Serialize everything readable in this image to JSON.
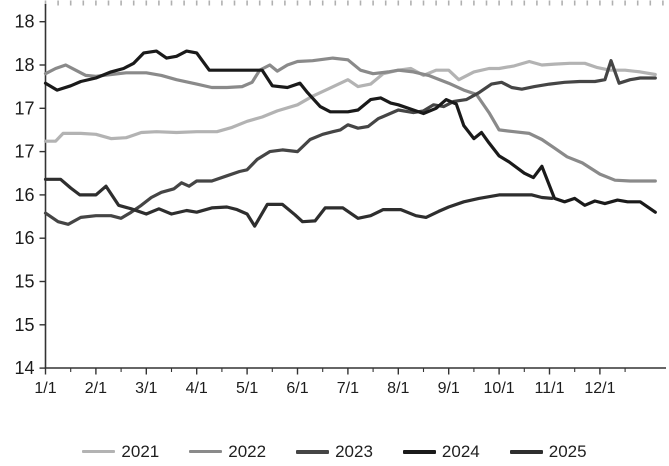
{
  "chart_data": {
    "type": "line",
    "title": "",
    "xlabel": "",
    "ylabel": "",
    "x_axis": {
      "month_labels": [
        "1/1",
        "2/1",
        "3/1",
        "4/1",
        "5/1",
        "6/1",
        "7/1",
        "8/1",
        "9/1",
        "10/1",
        "11/1",
        "12/1"
      ],
      "range_months": [
        0,
        12.3
      ],
      "minor_ticks": "half-month",
      "top_edge_ticks": "weekly"
    },
    "y_axis": {
      "range": [
        14,
        18
      ],
      "tick_values": [
        18,
        17.5,
        17,
        16.5,
        16,
        15.5,
        15,
        14.5,
        14
      ],
      "tick_labels": [
        "18",
        "18",
        "17",
        "17",
        "16",
        "16",
        "15",
        "15",
        "14"
      ]
    },
    "grid": "off",
    "legend_position": "bottom",
    "series": [
      {
        "name": "2021",
        "color": "#b3b3b3",
        "points": [
          [
            0,
            16.62
          ],
          [
            0.2,
            16.62
          ],
          [
            0.35,
            16.71
          ],
          [
            0.7,
            16.71
          ],
          [
            1,
            16.7
          ],
          [
            1.3,
            16.65
          ],
          [
            1.6,
            16.66
          ],
          [
            1.9,
            16.72
          ],
          [
            2.2,
            16.73
          ],
          [
            2.6,
            16.72
          ],
          [
            3,
            16.73
          ],
          [
            3.4,
            16.73
          ],
          [
            3.7,
            16.78
          ],
          [
            4,
            16.85
          ],
          [
            4.3,
            16.9
          ],
          [
            4.6,
            16.97
          ],
          [
            5,
            17.04
          ],
          [
            5.3,
            17.14
          ],
          [
            5.6,
            17.22
          ],
          [
            6,
            17.33
          ],
          [
            6.2,
            17.25
          ],
          [
            6.45,
            17.28
          ],
          [
            6.7,
            17.4
          ],
          [
            7,
            17.44
          ],
          [
            7.25,
            17.46
          ],
          [
            7.5,
            17.38
          ],
          [
            7.75,
            17.44
          ],
          [
            8,
            17.44
          ],
          [
            8.2,
            17.33
          ],
          [
            8.5,
            17.42
          ],
          [
            8.8,
            17.46
          ],
          [
            9,
            17.46
          ],
          [
            9.3,
            17.49
          ],
          [
            9.6,
            17.54
          ],
          [
            9.85,
            17.5
          ],
          [
            10.1,
            17.51
          ],
          [
            10.4,
            17.52
          ],
          [
            10.7,
            17.52
          ],
          [
            10.95,
            17.47
          ],
          [
            11.2,
            17.44
          ],
          [
            11.5,
            17.44
          ],
          [
            11.8,
            17.42
          ],
          [
            12.1,
            17.39
          ]
        ]
      },
      {
        "name": "2022",
        "color": "#8a8a8a",
        "points": [
          [
            0,
            17.4
          ],
          [
            0.2,
            17.46
          ],
          [
            0.4,
            17.5
          ],
          [
            0.6,
            17.44
          ],
          [
            0.8,
            17.38
          ],
          [
            1,
            17.37
          ],
          [
            1.3,
            17.39
          ],
          [
            1.6,
            17.41
          ],
          [
            2,
            17.41
          ],
          [
            2.3,
            17.38
          ],
          [
            2.6,
            17.33
          ],
          [
            3,
            17.28
          ],
          [
            3.3,
            17.24
          ],
          [
            3.6,
            17.24
          ],
          [
            3.9,
            17.25
          ],
          [
            4.1,
            17.3
          ],
          [
            4.25,
            17.44
          ],
          [
            4.45,
            17.5
          ],
          [
            4.6,
            17.43
          ],
          [
            4.8,
            17.5
          ],
          [
            5,
            17.54
          ],
          [
            5.3,
            17.55
          ],
          [
            5.7,
            17.58
          ],
          [
            6,
            17.56
          ],
          [
            6.25,
            17.44
          ],
          [
            6.5,
            17.4
          ],
          [
            6.8,
            17.42
          ],
          [
            7,
            17.44
          ],
          [
            7.3,
            17.42
          ],
          [
            7.6,
            17.38
          ],
          [
            8,
            17.29
          ],
          [
            8.3,
            17.21
          ],
          [
            8.55,
            17.16
          ],
          [
            8.8,
            16.95
          ],
          [
            9,
            16.75
          ],
          [
            9.3,
            16.73
          ],
          [
            9.6,
            16.71
          ],
          [
            9.85,
            16.64
          ],
          [
            10.1,
            16.54
          ],
          [
            10.35,
            16.44
          ],
          [
            10.65,
            16.37
          ],
          [
            11,
            16.24
          ],
          [
            11.3,
            16.17
          ],
          [
            11.6,
            16.16
          ],
          [
            12.1,
            16.16
          ]
        ]
      },
      {
        "name": "2023",
        "color": "#454545",
        "points": [
          [
            0,
            15.79
          ],
          [
            0.25,
            15.69
          ],
          [
            0.45,
            15.66
          ],
          [
            0.7,
            15.74
          ],
          [
            1,
            15.76
          ],
          [
            1.3,
            15.76
          ],
          [
            1.5,
            15.73
          ],
          [
            1.7,
            15.8
          ],
          [
            1.9,
            15.88
          ],
          [
            2.1,
            15.97
          ],
          [
            2.3,
            16.03
          ],
          [
            2.55,
            16.07
          ],
          [
            2.7,
            16.14
          ],
          [
            2.85,
            16.1
          ],
          [
            3,
            16.16
          ],
          [
            3.3,
            16.16
          ],
          [
            3.6,
            16.22
          ],
          [
            3.85,
            16.27
          ],
          [
            4,
            16.29
          ],
          [
            4.2,
            16.41
          ],
          [
            4.45,
            16.5
          ],
          [
            4.7,
            16.52
          ],
          [
            5,
            16.5
          ],
          [
            5.25,
            16.64
          ],
          [
            5.5,
            16.7
          ],
          [
            5.7,
            16.73
          ],
          [
            5.85,
            16.75
          ],
          [
            6,
            16.81
          ],
          [
            6.2,
            16.77
          ],
          [
            6.4,
            16.79
          ],
          [
            6.6,
            16.88
          ],
          [
            6.8,
            16.93
          ],
          [
            7,
            16.98
          ],
          [
            7.3,
            16.95
          ],
          [
            7.5,
            16.97
          ],
          [
            7.7,
            17.04
          ],
          [
            7.9,
            17.02
          ],
          [
            8.1,
            17.08
          ],
          [
            8.35,
            17.1
          ],
          [
            8.6,
            17.18
          ],
          [
            8.85,
            17.28
          ],
          [
            9.05,
            17.3
          ],
          [
            9.25,
            17.24
          ],
          [
            9.45,
            17.22
          ],
          [
            9.7,
            17.25
          ],
          [
            10,
            17.28
          ],
          [
            10.3,
            17.3
          ],
          [
            10.6,
            17.31
          ],
          [
            10.9,
            17.31
          ],
          [
            11.1,
            17.33
          ],
          [
            11.22,
            17.55
          ],
          [
            11.38,
            17.29
          ],
          [
            11.6,
            17.33
          ],
          [
            11.8,
            17.35
          ],
          [
            12.1,
            17.35
          ]
        ]
      },
      {
        "name": "2024",
        "color": "#1a1a1a",
        "points": [
          [
            0,
            17.29
          ],
          [
            0.23,
            17.21
          ],
          [
            0.5,
            17.26
          ],
          [
            0.7,
            17.31
          ],
          [
            1,
            17.35
          ],
          [
            1.3,
            17.42
          ],
          [
            1.55,
            17.46
          ],
          [
            1.75,
            17.52
          ],
          [
            1.95,
            17.64
          ],
          [
            2.2,
            17.66
          ],
          [
            2.4,
            17.58
          ],
          [
            2.6,
            17.6
          ],
          [
            2.8,
            17.66
          ],
          [
            3,
            17.64
          ],
          [
            3.1,
            17.56
          ],
          [
            3.25,
            17.44
          ],
          [
            3.6,
            17.44
          ],
          [
            4,
            17.44
          ],
          [
            4.3,
            17.44
          ],
          [
            4.5,
            17.26
          ],
          [
            4.8,
            17.24
          ],
          [
            5.05,
            17.29
          ],
          [
            5.2,
            17.18
          ],
          [
            5.45,
            17.02
          ],
          [
            5.65,
            16.96
          ],
          [
            6,
            16.96
          ],
          [
            6.2,
            16.98
          ],
          [
            6.45,
            17.1
          ],
          [
            6.65,
            17.12
          ],
          [
            6.85,
            17.06
          ],
          [
            7,
            17.04
          ],
          [
            7.3,
            16.98
          ],
          [
            7.5,
            16.94
          ],
          [
            7.75,
            17.0
          ],
          [
            7.95,
            17.1
          ],
          [
            8.15,
            17.05
          ],
          [
            8.3,
            16.8
          ],
          [
            8.5,
            16.65
          ],
          [
            8.65,
            16.72
          ],
          [
            8.8,
            16.6
          ],
          [
            9,
            16.45
          ],
          [
            9.2,
            16.38
          ],
          [
            9.5,
            16.25
          ],
          [
            9.68,
            16.2
          ],
          [
            9.85,
            16.33
          ],
          [
            10.1,
            15.96
          ],
          [
            10.3,
            15.92
          ],
          [
            10.5,
            15.96
          ],
          [
            10.7,
            15.88
          ],
          [
            10.9,
            15.93
          ],
          [
            11.1,
            15.9
          ],
          [
            11.35,
            15.94
          ],
          [
            11.55,
            15.92
          ],
          [
            11.8,
            15.92
          ],
          [
            12.1,
            15.8
          ]
        ]
      },
      {
        "name": "2025",
        "color": "#2e2e2e",
        "points": [
          [
            0,
            16.18
          ],
          [
            0.3,
            16.18
          ],
          [
            0.5,
            16.08
          ],
          [
            0.68,
            16.0
          ],
          [
            1,
            16.0
          ],
          [
            1.2,
            16.1
          ],
          [
            1.45,
            15.88
          ],
          [
            1.7,
            15.84
          ],
          [
            2,
            15.78
          ],
          [
            2.25,
            15.84
          ],
          [
            2.5,
            15.78
          ],
          [
            2.8,
            15.82
          ],
          [
            3,
            15.8
          ],
          [
            3.3,
            15.85
          ],
          [
            3.6,
            15.86
          ],
          [
            3.8,
            15.83
          ],
          [
            4,
            15.78
          ],
          [
            4.15,
            15.64
          ],
          [
            4.4,
            15.89
          ],
          [
            4.7,
            15.89
          ],
          [
            4.95,
            15.77
          ],
          [
            5.1,
            15.69
          ],
          [
            5.35,
            15.7
          ],
          [
            5.55,
            15.85
          ],
          [
            5.9,
            15.85
          ],
          [
            6.2,
            15.73
          ],
          [
            6.45,
            15.76
          ],
          [
            6.7,
            15.83
          ],
          [
            7.05,
            15.83
          ],
          [
            7.35,
            15.76
          ],
          [
            7.55,
            15.74
          ],
          [
            7.8,
            15.81
          ],
          [
            8,
            15.86
          ],
          [
            8.3,
            15.92
          ],
          [
            8.6,
            15.96
          ],
          [
            9,
            16.0
          ],
          [
            9.35,
            16.0
          ],
          [
            9.65,
            16.0
          ],
          [
            9.85,
            15.97
          ],
          [
            10.05,
            15.96
          ]
        ]
      }
    ],
    "legend_entries": [
      {
        "label": "2021",
        "color": "#b3b3b3"
      },
      {
        "label": "2022",
        "color": "#8a8a8a"
      },
      {
        "label": "2023",
        "color": "#454545"
      },
      {
        "label": "2024",
        "color": "#1a1a1a"
      },
      {
        "label": "2025",
        "color": "#2e2e2e"
      }
    ],
    "axis_color": "#333333",
    "top_tick_color": "#b0b0b0"
  }
}
